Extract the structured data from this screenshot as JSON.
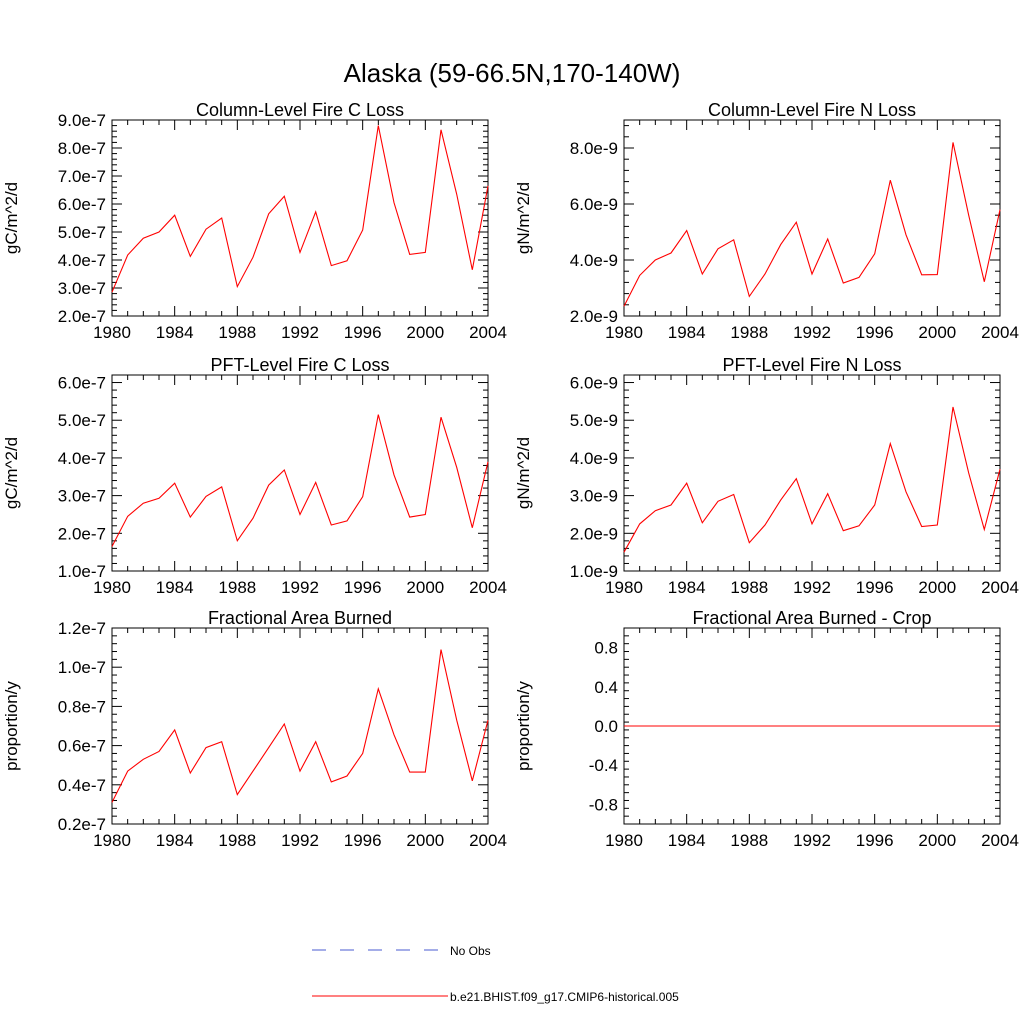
{
  "page": {
    "title": "Alaska (59-66.5N,170-140W)",
    "legend": [
      {
        "label": "No Obs",
        "style": "dashed",
        "color": "#4a5bd0"
      },
      {
        "label": "b.e21.BHIST.f09_g17.CMIP6-historical.005",
        "style": "solid",
        "color": "#ff0000"
      }
    ]
  },
  "chart_data": [
    {
      "type": "line",
      "title": "Column-Level Fire C Loss",
      "ylabel": "gC/m^2/d",
      "xlim": [
        1980,
        2004
      ],
      "ylim": [
        2e-07,
        9e-07
      ],
      "xticks": [
        1980,
        1984,
        1988,
        1992,
        1996,
        2000,
        2004
      ],
      "yticks": [
        {
          "v": 2e-07,
          "label": "2.0e-7"
        },
        {
          "v": 3e-07,
          "label": "3.0e-7"
        },
        {
          "v": 4e-07,
          "label": "4.0e-7"
        },
        {
          "v": 5e-07,
          "label": "5.0e-7"
        },
        {
          "v": 6e-07,
          "label": "6.0e-7"
        },
        {
          "v": 7e-07,
          "label": "7.0e-7"
        },
        {
          "v": 8e-07,
          "label": "8.0e-7"
        },
        {
          "v": 9e-07,
          "label": "9.0e-7"
        }
      ],
      "grid": false,
      "series": [
        {
          "color": "#ff0000",
          "x": [
            1980,
            1981,
            1982,
            1983,
            1984,
            1985,
            1986,
            1987,
            1988,
            1989,
            1990,
            1991,
            1992,
            1993,
            1994,
            1995,
            1996,
            1997,
            1998,
            1999,
            2000,
            2001,
            2002,
            2003,
            2004
          ],
          "values": [
            2.85e-07,
            4.18e-07,
            4.78e-07,
            5e-07,
            5.6e-07,
            4.13e-07,
            5.1e-07,
            5.5e-07,
            3.05e-07,
            4.1e-07,
            5.65e-07,
            6.28e-07,
            4.27e-07,
            5.72e-07,
            3.8e-07,
            3.97e-07,
            5.07e-07,
            8.8e-07,
            6.05e-07,
            4.2e-07,
            4.27e-07,
            8.65e-07,
            6.35e-07,
            3.65e-07,
            6.65e-07
          ]
        }
      ]
    },
    {
      "type": "line",
      "title": "Column-Level Fire N Loss",
      "ylabel": "gN/m^2/d",
      "xlim": [
        1980,
        2004
      ],
      "ylim": [
        2e-09,
        9e-09
      ],
      "xticks": [
        1980,
        1984,
        1988,
        1992,
        1996,
        2000,
        2004
      ],
      "yticks": [
        {
          "v": 2e-09,
          "label": "2.0e-9"
        },
        {
          "v": 4e-09,
          "label": "4.0e-9"
        },
        {
          "v": 6e-09,
          "label": "6.0e-9"
        },
        {
          "v": 8e-09,
          "label": "8.0e-9"
        }
      ],
      "grid": false,
      "series": [
        {
          "color": "#ff0000",
          "x": [
            1980,
            1981,
            1982,
            1983,
            1984,
            1985,
            1986,
            1987,
            1988,
            1989,
            1990,
            1991,
            1992,
            1993,
            1994,
            1995,
            1996,
            1997,
            1998,
            1999,
            2000,
            2001,
            2002,
            2003,
            2004
          ],
          "values": [
            2.35e-09,
            3.45e-09,
            4e-09,
            4.25e-09,
            5.05e-09,
            3.5e-09,
            4.4e-09,
            4.72e-09,
            2.7e-09,
            3.5e-09,
            4.55e-09,
            5.35e-09,
            3.5e-09,
            4.75e-09,
            3.18e-09,
            3.38e-09,
            4.22e-09,
            6.85e-09,
            4.9e-09,
            3.47e-09,
            3.48e-09,
            8.2e-09,
            5.6e-09,
            3.22e-09,
            5.8e-09
          ]
        }
      ]
    },
    {
      "type": "line",
      "title": "PFT-Level Fire C Loss",
      "ylabel": "gC/m^2/d",
      "xlim": [
        1980,
        2004
      ],
      "ylim": [
        1e-07,
        6.2e-07
      ],
      "xticks": [
        1980,
        1984,
        1988,
        1992,
        1996,
        2000,
        2004
      ],
      "yticks": [
        {
          "v": 1e-07,
          "label": "1.0e-7"
        },
        {
          "v": 2e-07,
          "label": "2.0e-7"
        },
        {
          "v": 3e-07,
          "label": "3.0e-7"
        },
        {
          "v": 4e-07,
          "label": "4.0e-7"
        },
        {
          "v": 5e-07,
          "label": "5.0e-7"
        },
        {
          "v": 6e-07,
          "label": "6.0e-7"
        }
      ],
      "grid": false,
      "series": [
        {
          "color": "#ff0000",
          "x": [
            1980,
            1981,
            1982,
            1983,
            1984,
            1985,
            1986,
            1987,
            1988,
            1989,
            1990,
            1991,
            1992,
            1993,
            1994,
            1995,
            1996,
            1997,
            1998,
            1999,
            2000,
            2001,
            2002,
            2003,
            2004
          ],
          "values": [
            1.65e-07,
            2.45e-07,
            2.8e-07,
            2.93e-07,
            3.33e-07,
            2.43e-07,
            2.98e-07,
            3.23e-07,
            1.8e-07,
            2.4e-07,
            3.28e-07,
            3.68e-07,
            2.5e-07,
            3.35e-07,
            2.22e-07,
            2.33e-07,
            2.97e-07,
            5.15e-07,
            3.55e-07,
            2.43e-07,
            2.5e-07,
            5.08e-07,
            3.75e-07,
            2.15e-07,
            3.9e-07
          ]
        }
      ]
    },
    {
      "type": "line",
      "title": "PFT-Level Fire N Loss",
      "ylabel": "gN/m^2/d",
      "xlim": [
        1980,
        2004
      ],
      "ylim": [
        1e-09,
        6.2e-09
      ],
      "xticks": [
        1980,
        1984,
        1988,
        1992,
        1996,
        2000,
        2004
      ],
      "yticks": [
        {
          "v": 1e-09,
          "label": "1.0e-9"
        },
        {
          "v": 2e-09,
          "label": "2.0e-9"
        },
        {
          "v": 3e-09,
          "label": "3.0e-9"
        },
        {
          "v": 4e-09,
          "label": "4.0e-9"
        },
        {
          "v": 5e-09,
          "label": "5.0e-9"
        },
        {
          "v": 6e-09,
          "label": "6.0e-9"
        }
      ],
      "grid": false,
      "series": [
        {
          "color": "#ff0000",
          "x": [
            1980,
            1981,
            1982,
            1983,
            1984,
            1985,
            1986,
            1987,
            1988,
            1989,
            1990,
            1991,
            1992,
            1993,
            1994,
            1995,
            1996,
            1997,
            1998,
            1999,
            2000,
            2001,
            2002,
            2003,
            2004
          ],
          "values": [
            1.5e-09,
            2.25e-09,
            2.6e-09,
            2.75e-09,
            3.33e-09,
            2.28e-09,
            2.85e-09,
            3.03e-09,
            1.75e-09,
            2.22e-09,
            2.88e-09,
            3.45e-09,
            2.25e-09,
            3.05e-09,
            2.07e-09,
            2.2e-09,
            2.75e-09,
            4.38e-09,
            3.1e-09,
            2.18e-09,
            2.22e-09,
            5.35e-09,
            3.6e-09,
            2.1e-09,
            3.7e-09
          ]
        }
      ]
    },
    {
      "type": "line",
      "title": "Fractional Area Burned",
      "ylabel": "proportion/y",
      "xlim": [
        1980,
        2004
      ],
      "ylim": [
        2e-08,
        1.2e-07
      ],
      "xticks": [
        1980,
        1984,
        1988,
        1992,
        1996,
        2000,
        2004
      ],
      "yticks": [
        {
          "v": 2e-08,
          "label": "0.2e-7"
        },
        {
          "v": 4e-08,
          "label": "0.4e-7"
        },
        {
          "v": 6e-08,
          "label": "0.6e-7"
        },
        {
          "v": 8e-08,
          "label": "0.8e-7"
        },
        {
          "v": 1e-07,
          "label": "1.0e-7"
        },
        {
          "v": 1.2e-07,
          "label": "1.2e-7"
        }
      ],
      "grid": false,
      "series": [
        {
          "color": "#ff0000",
          "x": [
            1980,
            1981,
            1982,
            1983,
            1984,
            1985,
            1986,
            1987,
            1988,
            1989,
            1990,
            1991,
            1992,
            1993,
            1994,
            1995,
            1996,
            1997,
            1998,
            1999,
            2000,
            2001,
            2002,
            2003,
            2004
          ],
          "values": [
            3.1e-08,
            4.7e-08,
            5.3e-08,
            5.7e-08,
            6.8e-08,
            4.6e-08,
            5.9e-08,
            6.2e-08,
            3.5e-08,
            4.7e-08,
            5.9e-08,
            7.1e-08,
            4.7e-08,
            6.2e-08,
            4.15e-08,
            4.45e-08,
            5.6e-08,
            8.9e-08,
            6.55e-08,
            4.65e-08,
            4.65e-08,
            1.09e-07,
            7.3e-08,
            4.2e-08,
            7.3e-08
          ]
        }
      ]
    },
    {
      "type": "line",
      "title": "Fractional Area Burned - Crop",
      "ylabel": "proportion/y",
      "xlim": [
        1980,
        2004
      ],
      "ylim": [
        -1.0,
        1.0
      ],
      "xticks": [
        1980,
        1984,
        1988,
        1992,
        1996,
        2000,
        2004
      ],
      "yticks": [
        {
          "v": -0.8,
          "label": "-0.8"
        },
        {
          "v": -0.4,
          "label": "-0.4"
        },
        {
          "v": 0.0,
          "label": "0.0"
        },
        {
          "v": 0.4,
          "label": "0.4"
        },
        {
          "v": 0.8,
          "label": "0.8"
        }
      ],
      "grid": false,
      "series": [
        {
          "color": "#ff0000",
          "x": [
            1980,
            1981,
            1982,
            1983,
            1984,
            1985,
            1986,
            1987,
            1988,
            1989,
            1990,
            1991,
            1992,
            1993,
            1994,
            1995,
            1996,
            1997,
            1998,
            1999,
            2000,
            2001,
            2002,
            2003,
            2004
          ],
          "values": [
            0,
            0,
            0,
            0,
            0,
            0,
            0,
            0,
            0,
            0,
            0,
            0,
            0,
            0,
            0,
            0,
            0,
            0,
            0,
            0,
            0,
            0,
            0,
            0,
            0
          ]
        }
      ]
    }
  ]
}
